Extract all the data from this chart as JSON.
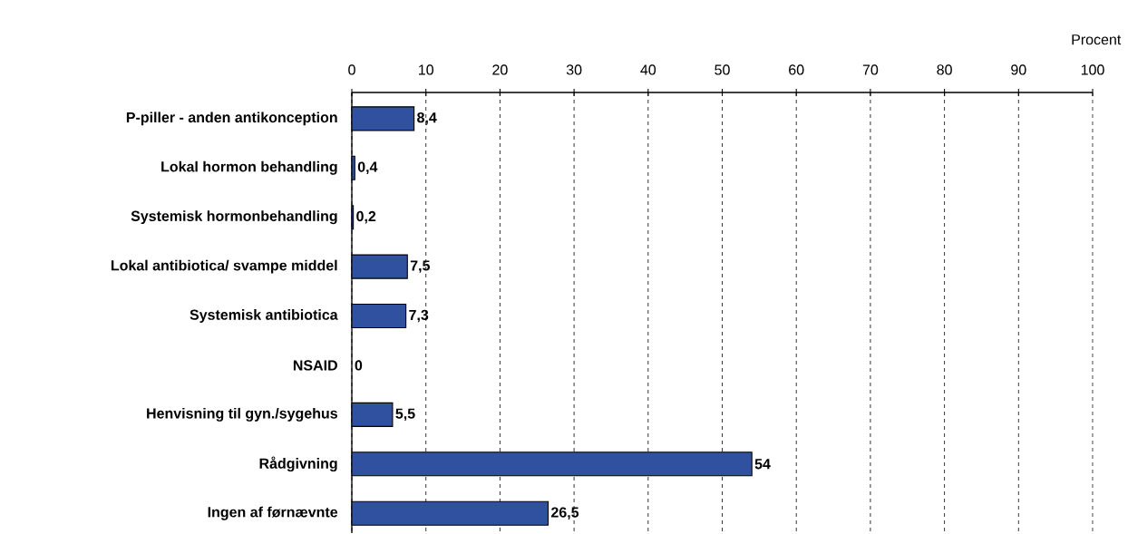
{
  "chart_data": {
    "type": "bar",
    "orientation": "horizontal",
    "categories": [
      "P-piller - anden antikonception",
      "Lokal hormon behandling",
      "Systemisk hormonbehandling",
      "Lokal antibiotica/ svampe middel",
      "Systemisk antibiotica",
      "NSAID",
      "Henvisning til gyn./sygehus",
      "Rådgivning",
      "Ingen af førnævnte"
    ],
    "values": [
      8.4,
      0.4,
      0.2,
      7.5,
      7.3,
      0,
      5.5,
      54,
      26.5
    ],
    "value_labels": [
      "8,4",
      "0,4",
      "0,2",
      "7,5",
      "7,3",
      "0",
      "5,5",
      "54",
      "26,5"
    ],
    "color": "#3050a0",
    "xlabel": "Procent",
    "xlim": [
      0,
      100
    ],
    "xticks": [
      0,
      10,
      20,
      30,
      40,
      50,
      60,
      70,
      80,
      90,
      100
    ],
    "grid": "x"
  }
}
